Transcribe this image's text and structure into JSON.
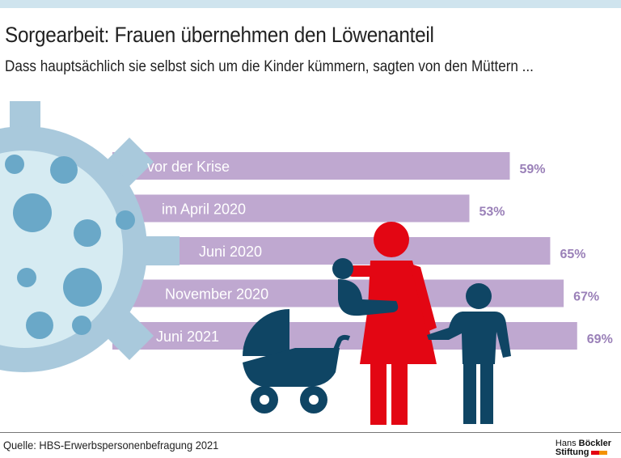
{
  "title": "Sorgearbeit: Frauen übernehmen den Löwenanteil",
  "subtitle": "Dass hauptsächlich sie selbst sich um die Kinder kümmern, sagten von den Müttern ...",
  "source": "Quelle: HBS-Erwerbspersonenbefragung 2021",
  "logo": {
    "line1_a": "Hans",
    "line1_b": "Böckler",
    "line2": "Stiftung"
  },
  "colors": {
    "bar": "#bfa8d0",
    "value_label": "#9a80b8",
    "virus_outer": "#a9c9dc",
    "virus_inner": "#d6ebf2",
    "virus_dots": "#6aa8c8",
    "mother": "#e30613",
    "child": "#0f4564"
  },
  "chart_data": {
    "type": "bar",
    "orientation": "horizontal",
    "categories": [
      "vor der Krise",
      "im April 2020",
      "Juni 2020",
      "November 2020",
      "Juni 2021"
    ],
    "values": [
      59,
      53,
      65,
      67,
      69
    ],
    "value_labels": [
      "59%",
      "53%",
      "65%",
      "67%",
      "69%"
    ],
    "unit": "%"
  }
}
